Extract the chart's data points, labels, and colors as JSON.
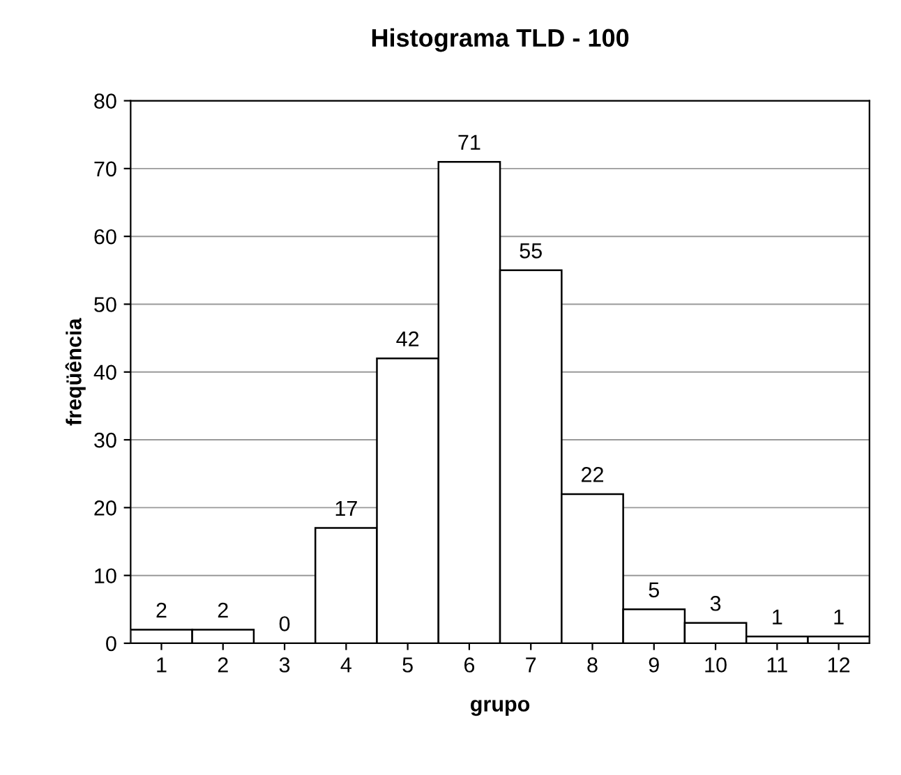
{
  "chart_data": {
    "type": "bar",
    "title": "Histograma TLD - 100",
    "xlabel": "grupo",
    "ylabel": "freqüência",
    "categories": [
      "1",
      "2",
      "3",
      "4",
      "5",
      "6",
      "7",
      "8",
      "9",
      "10",
      "11",
      "12"
    ],
    "values": [
      2,
      2,
      0,
      17,
      42,
      71,
      55,
      22,
      5,
      3,
      1,
      1
    ],
    "color": "#ffffff",
    "ylim": [
      0,
      80
    ],
    "yticks": [
      0,
      10,
      20,
      30,
      40,
      50,
      60,
      70,
      80
    ],
    "grid": "y",
    "data_labels": true
  }
}
